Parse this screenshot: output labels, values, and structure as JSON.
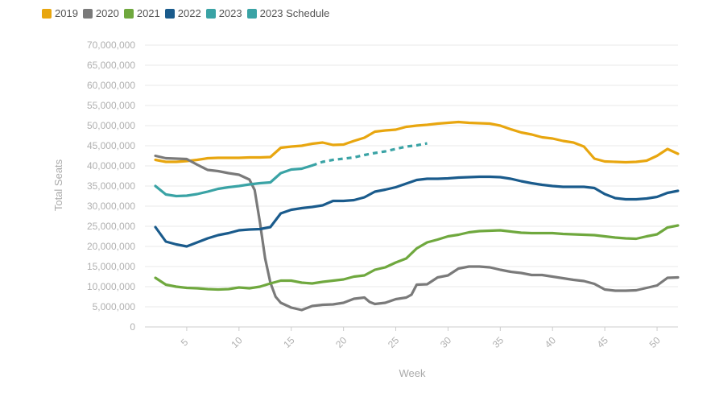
{
  "chart_data": {
    "type": "line",
    "title": "",
    "xlabel": "Week",
    "ylabel": "Total Seats",
    "xlim": [
      1,
      52
    ],
    "ylim": [
      0,
      70000000
    ],
    "x_ticks": [
      5,
      10,
      15,
      20,
      25,
      30,
      35,
      40,
      45,
      50
    ],
    "y_ticks": [
      0,
      5000000,
      10000000,
      15000000,
      20000000,
      25000000,
      30000000,
      35000000,
      40000000,
      45000000,
      50000000,
      55000000,
      60000000,
      65000000,
      70000000
    ],
    "y_tick_labels": [
      "0",
      "5,000,000",
      "10,000,000",
      "15,000,000",
      "20,000,000",
      "25,000,000",
      "30,000,000",
      "35,000,000",
      "40,000,000",
      "45,000,000",
      "50,000,000",
      "55,000,000",
      "60,000,000",
      "65,000,000",
      "70,000,000"
    ],
    "grid": true,
    "legend_position": "top-left",
    "series": [
      {
        "name": "2019",
        "color": "#e8a60f",
        "style": "solid",
        "x": [
          2,
          3,
          4,
          5,
          6,
          7,
          8,
          9,
          10,
          11,
          12,
          13,
          14,
          15,
          16,
          17,
          18,
          19,
          20,
          21,
          22,
          23,
          24,
          25,
          26,
          27,
          28,
          29,
          30,
          31,
          32,
          33,
          34,
          35,
          36,
          37,
          38,
          39,
          40,
          41,
          42,
          43,
          44,
          45,
          46,
          47,
          48,
          49,
          50,
          51,
          52
        ],
        "y": [
          41500000,
          41000000,
          41000000,
          41200000,
          41500000,
          41900000,
          42000000,
          42000000,
          42000000,
          42100000,
          42100000,
          42200000,
          44500000,
          44800000,
          45000000,
          45500000,
          45800000,
          45200000,
          45300000,
          46200000,
          47000000,
          48500000,
          48800000,
          49000000,
          49700000,
          50000000,
          50200000,
          50500000,
          50700000,
          50900000,
          50700000,
          50600000,
          50500000,
          50000000,
          49100000,
          48300000,
          47800000,
          47100000,
          46800000,
          46200000,
          45800000,
          44800000,
          41800000,
          41100000,
          41000000,
          40900000,
          41000000,
          41300000,
          42500000,
          44200000,
          43000000
        ]
      },
      {
        "name": "2020",
        "color": "#7a7a7a",
        "style": "solid",
        "x": [
          2,
          3,
          4,
          5,
          6,
          7,
          8,
          9,
          10,
          11,
          11.5,
          12,
          12.5,
          13,
          13.5,
          14,
          15,
          16,
          17,
          18,
          19,
          20,
          21,
          22,
          22.5,
          23,
          24,
          25,
          26,
          26.5,
          27,
          28,
          29,
          30,
          31,
          32,
          33,
          34,
          35,
          36,
          37,
          38,
          39,
          40,
          41,
          42,
          43,
          44,
          45,
          46,
          47,
          48,
          49,
          50,
          51,
          52
        ],
        "y": [
          42500000,
          41900000,
          41800000,
          41700000,
          40300000,
          39000000,
          38700000,
          38200000,
          37800000,
          36600000,
          34000000,
          26000000,
          17000000,
          11000000,
          7500000,
          6000000,
          4800000,
          4200000,
          5200000,
          5500000,
          5600000,
          6000000,
          7000000,
          7300000,
          6200000,
          5700000,
          6000000,
          6900000,
          7300000,
          8000000,
          10500000,
          10600000,
          12300000,
          12800000,
          14500000,
          15000000,
          15000000,
          14800000,
          14200000,
          13700000,
          13400000,
          12900000,
          12900000,
          12500000,
          12100000,
          11700000,
          11400000,
          10700000,
          9300000,
          9000000,
          9000000,
          9100000,
          9700000,
          10300000,
          12200000,
          12300000
        ]
      },
      {
        "name": "2021",
        "color": "#6fa83e",
        "style": "solid",
        "x": [
          2,
          3,
          4,
          5,
          6,
          7,
          8,
          9,
          10,
          11,
          12,
          13,
          14,
          15,
          16,
          17,
          18,
          19,
          20,
          21,
          22,
          23,
          24,
          25,
          26,
          27,
          28,
          29,
          30,
          31,
          32,
          33,
          34,
          35,
          36,
          37,
          38,
          39,
          40,
          41,
          42,
          43,
          44,
          45,
          46,
          47,
          48,
          49,
          50,
          51,
          52
        ],
        "y": [
          12200000,
          10500000,
          10000000,
          9700000,
          9600000,
          9400000,
          9300000,
          9400000,
          9800000,
          9600000,
          10000000,
          10800000,
          11500000,
          11500000,
          11000000,
          10800000,
          11200000,
          11500000,
          11800000,
          12500000,
          12800000,
          14200000,
          14800000,
          16000000,
          17000000,
          19500000,
          21000000,
          21700000,
          22500000,
          22900000,
          23500000,
          23800000,
          23900000,
          24000000,
          23700000,
          23400000,
          23300000,
          23300000,
          23300000,
          23100000,
          23000000,
          22900000,
          22800000,
          22500000,
          22200000,
          22000000,
          21900000,
          22500000,
          23000000,
          24700000,
          25200000
        ]
      },
      {
        "name": "2022",
        "color": "#1a5b8c",
        "style": "solid",
        "x": [
          2,
          3,
          4,
          5,
          6,
          7,
          8,
          9,
          10,
          11,
          12,
          13,
          14,
          15,
          16,
          17,
          18,
          19,
          20,
          21,
          22,
          23,
          24,
          25,
          26,
          27,
          28,
          29,
          30,
          31,
          32,
          33,
          34,
          35,
          36,
          37,
          38,
          39,
          40,
          41,
          42,
          43,
          44,
          45,
          46,
          47,
          48,
          49,
          50,
          51,
          52
        ],
        "y": [
          24800000,
          21200000,
          20500000,
          20000000,
          21000000,
          22000000,
          22800000,
          23300000,
          24000000,
          24200000,
          24300000,
          24800000,
          28200000,
          29100000,
          29500000,
          29800000,
          30200000,
          31300000,
          31300000,
          31500000,
          32200000,
          33600000,
          34100000,
          34700000,
          35600000,
          36500000,
          36800000,
          36800000,
          36900000,
          37100000,
          37200000,
          37300000,
          37300000,
          37200000,
          36800000,
          36200000,
          35700000,
          35300000,
          35000000,
          34800000,
          34800000,
          34800000,
          34500000,
          33000000,
          32000000,
          31700000,
          31700000,
          31900000,
          32300000,
          33300000,
          33800000
        ]
      },
      {
        "name": "2023",
        "color": "#3aa3a5",
        "style": "solid",
        "x": [
          2,
          3,
          4,
          5,
          6,
          7,
          8,
          9,
          10,
          11,
          12,
          13,
          14,
          15,
          16,
          17
        ],
        "y": [
          35000000,
          32900000,
          32500000,
          32600000,
          33000000,
          33600000,
          34300000,
          34700000,
          35000000,
          35400000,
          35700000,
          35900000,
          38200000,
          39100000,
          39300000,
          40100000
        ]
      },
      {
        "name": "2023 Schedule",
        "color": "#3aa3a5",
        "style": "dashed",
        "x": [
          17,
          18,
          19,
          20,
          21,
          22,
          23,
          24,
          25,
          26,
          27,
          28
        ],
        "y": [
          40100000,
          41000000,
          41500000,
          41800000,
          42100000,
          42700000,
          43200000,
          43600000,
          44200000,
          44800000,
          45100000,
          45600000
        ]
      }
    ]
  }
}
